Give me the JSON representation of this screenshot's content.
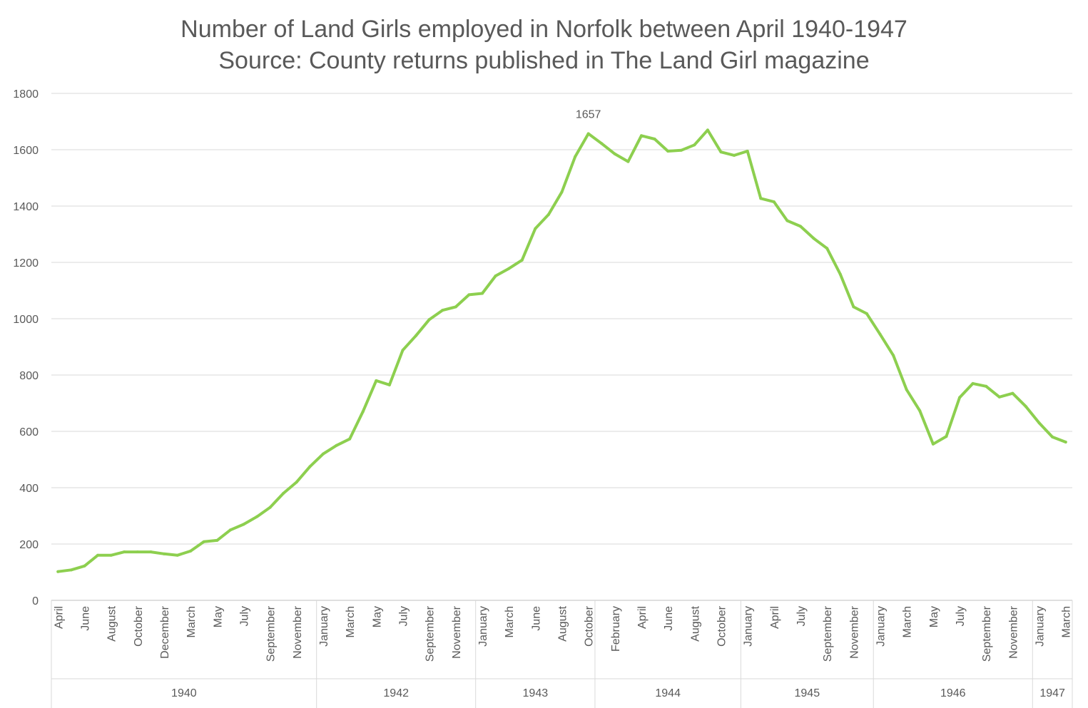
{
  "chart_data": {
    "type": "line",
    "title": "Number of Land Girls employed in Norfolk between April 1940-1947",
    "subtitle": "Source: County returns published in The Land Girl magazine",
    "xlabel": "",
    "ylabel": "",
    "ylim": [
      0,
      1800
    ],
    "yticks": [
      0,
      200,
      400,
      600,
      800,
      1000,
      1200,
      1400,
      1600,
      1800
    ],
    "grid": "horizontal",
    "legend": "none",
    "line_color": "#8DCF4F",
    "x_labels": [
      "April",
      "",
      "June",
      "",
      "August",
      "",
      "October",
      "",
      "December",
      "",
      "March",
      "",
      "May",
      "",
      "July",
      "",
      "September",
      "",
      "November",
      "",
      "January",
      "",
      "March",
      "",
      "May",
      "",
      "July",
      "",
      "September",
      "",
      "November",
      "",
      "January",
      "",
      "March",
      "",
      "June",
      "",
      "August",
      "",
      "October",
      "",
      "February",
      "",
      "April",
      "",
      "June",
      "",
      "August",
      "",
      "October",
      "",
      "January",
      "",
      "April",
      "",
      "July",
      "",
      "September",
      "",
      "November",
      "",
      "January",
      "",
      "March",
      "",
      "May",
      "",
      "July",
      "",
      "September",
      "",
      "November",
      "",
      "January",
      "",
      "March"
    ],
    "year_groups": [
      {
        "label": "1940",
        "start": 0,
        "end": 19
      },
      {
        "label": "1942",
        "start": 20,
        "end": 31
      },
      {
        "label": "1943",
        "start": 32,
        "end": 40
      },
      {
        "label": "1944",
        "start": 41,
        "end": 51
      },
      {
        "label": "1945",
        "start": 52,
        "end": 61
      },
      {
        "label": "1946",
        "start": 62,
        "end": 73
      },
      {
        "label": "1947",
        "start": 74,
        "end": 76
      }
    ],
    "series": [
      {
        "values": [
          102,
          108,
          122,
          160,
          160,
          172,
          172,
          172,
          165,
          160,
          175,
          208,
          213,
          250,
          270,
          297,
          330,
          380,
          420,
          475,
          520,
          550,
          573,
          670,
          780,
          765,
          888,
          940,
          997,
          1030,
          1042,
          1085,
          1090,
          1152,
          1178,
          1208,
          1320,
          1370,
          1450,
          1575,
          1657,
          1622,
          1585,
          1558,
          1650,
          1638,
          1595,
          1598,
          1617,
          1670,
          1592,
          1580,
          1595,
          1427,
          1415,
          1348,
          1328,
          1285,
          1250,
          1158,
          1042,
          1018,
          945,
          870,
          748,
          673,
          555,
          582,
          720,
          770,
          760,
          722,
          735,
          688,
          630,
          580,
          562
        ]
      }
    ],
    "annotations": [
      {
        "index": 40,
        "label": "1657"
      }
    ]
  }
}
